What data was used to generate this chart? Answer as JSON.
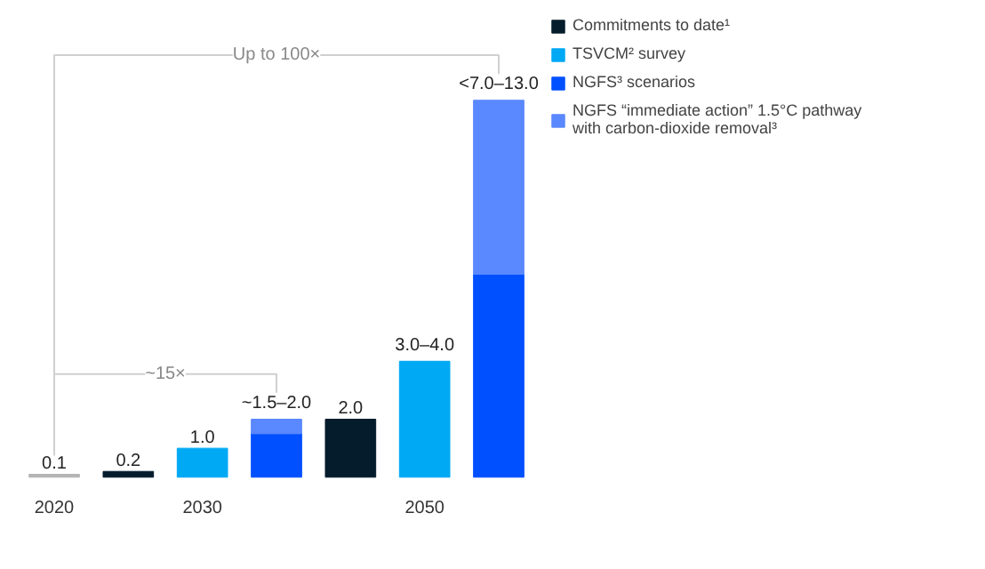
{
  "chart_data": {
    "type": "bar",
    "stacked": true,
    "categories": [
      "2020",
      null,
      "2030",
      null,
      null,
      "2050",
      null
    ],
    "series": [
      {
        "color": "#b4b4b4",
        "values": [
          0.1,
          null,
          null,
          null,
          null,
          null,
          null
        ],
        "value_labels": [
          "0.1",
          null,
          null,
          null,
          null,
          null,
          null
        ]
      },
      {
        "name": "Commitments to date¹",
        "color": "#051c2c",
        "values": [
          null,
          0.2,
          null,
          null,
          2.0,
          null,
          null
        ],
        "value_labels": [
          null,
          "0.2",
          null,
          null,
          "2.0",
          null,
          null
        ]
      },
      {
        "name": "TSVCM² survey",
        "color": "#00a9f4",
        "values": [
          null,
          null,
          1.0,
          null,
          null,
          3.0,
          null
        ],
        "value_labels": [
          null,
          null,
          "1.0",
          null,
          null,
          null,
          null
        ]
      },
      {
        "color": "#00a9f4",
        "values": [
          null,
          null,
          null,
          null,
          null,
          1.0,
          null
        ],
        "value_labels": [
          null,
          null,
          null,
          null,
          null,
          "3.0–4.0",
          null
        ]
      },
      {
        "name": "NGFS³ scenarios",
        "color": "#0050ff",
        "values": [
          null,
          null,
          null,
          1.5,
          null,
          null,
          7.0
        ]
      },
      {
        "name": "NGFS “immediate action” 1.5°C pathway with carbon-dioxide removal³",
        "color": "#5a88ff",
        "values": [
          null,
          null,
          null,
          0.5,
          null,
          null,
          6.0
        ],
        "value_labels": [
          null,
          null,
          null,
          "~1.5–2.0",
          null,
          null,
          "<7.0–13.0"
        ]
      }
    ],
    "annotations": [
      "Up to 100×",
      "~15×"
    ],
    "legend": "right",
    "grid": false
  }
}
